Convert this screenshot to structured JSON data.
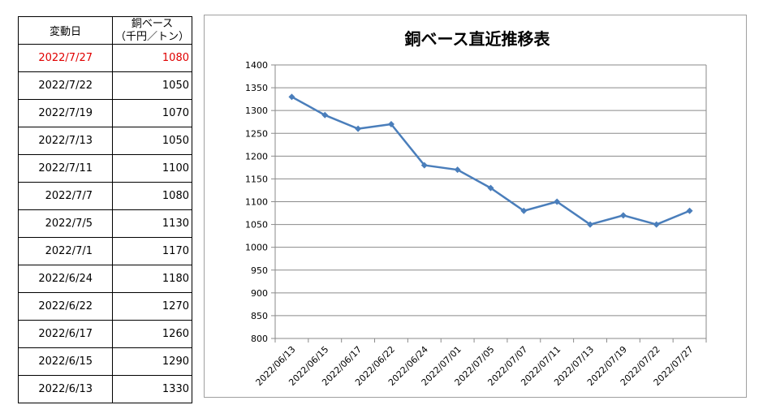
{
  "table": {
    "header_date": "変動日",
    "header_value_line1": "銅ベース",
    "header_value_line2": "（千円／トン）",
    "rows": [
      {
        "date": "2022/7/27",
        "value": "1080"
      },
      {
        "date": "2022/7/22",
        "value": "1050"
      },
      {
        "date": "2022/7/19",
        "value": "1070"
      },
      {
        "date": "2022/7/13",
        "value": "1050"
      },
      {
        "date": "2022/7/11",
        "value": "1100"
      },
      {
        "date": "2022/7/7",
        "value": "1080"
      },
      {
        "date": "2022/7/5",
        "value": "1130"
      },
      {
        "date": "2022/7/1",
        "value": "1170"
      },
      {
        "date": "2022/6/24",
        "value": "1180"
      },
      {
        "date": "2022/6/22",
        "value": "1270"
      },
      {
        "date": "2022/6/17",
        "value": "1260"
      },
      {
        "date": "2022/6/15",
        "value": "1290"
      },
      {
        "date": "2022/6/13",
        "value": "1330"
      }
    ],
    "highlight_color": "#e00000"
  },
  "chart_data": {
    "type": "line",
    "title": "銅ベース直近推移表",
    "categories": [
      "2022/06/13",
      "2022/06/15",
      "2022/06/17",
      "2022/06/22",
      "2022/06/24",
      "2022/07/01",
      "2022/07/05",
      "2022/07/07",
      "2022/07/11",
      "2022/07/13",
      "2022/07/19",
      "2022/07/22",
      "2022/07/27"
    ],
    "values": [
      1330,
      1290,
      1260,
      1270,
      1180,
      1170,
      1130,
      1080,
      1100,
      1050,
      1070,
      1050,
      1080
    ],
    "ylim": [
      800,
      1400
    ],
    "ytick_step": 50,
    "grid": true,
    "legend": "none",
    "line_color": "#4a7ebb"
  }
}
